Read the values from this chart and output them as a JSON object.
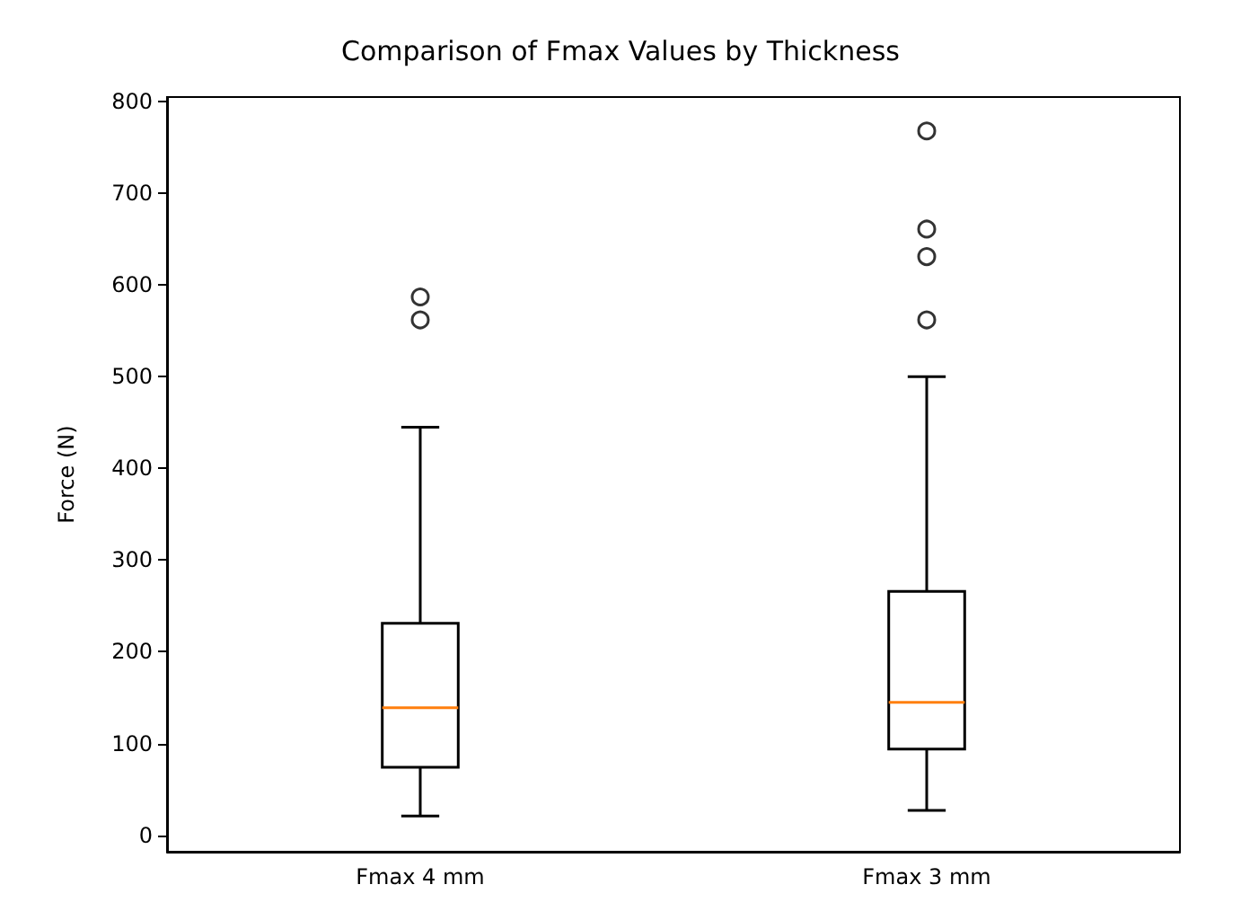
{
  "chart_data": {
    "type": "box",
    "title": "Comparison of Fmax Values by Thickness",
    "ylabel": "Force (N)",
    "categories": [
      "Fmax 4 mm",
      "Fmax 3 mm"
    ],
    "series": [
      {
        "color": "#000000",
        "boxes": [
          {
            "low": 21,
            "q1": 74,
            "median": 139,
            "q3": 231,
            "high": 445,
            "outliers": [
              562,
              587
            ]
          },
          {
            "low": 27,
            "q1": 94,
            "median": 145,
            "q3": 266,
            "high": 500,
            "outliers": [
              562,
              631,
              661,
              768
            ]
          }
        ]
      }
    ],
    "ylim": [
      -18,
      805
    ],
    "yticks": [
      0,
      100,
      200,
      300,
      400,
      500,
      600,
      700,
      800
    ],
    "grid": false,
    "marker": "circle"
  }
}
